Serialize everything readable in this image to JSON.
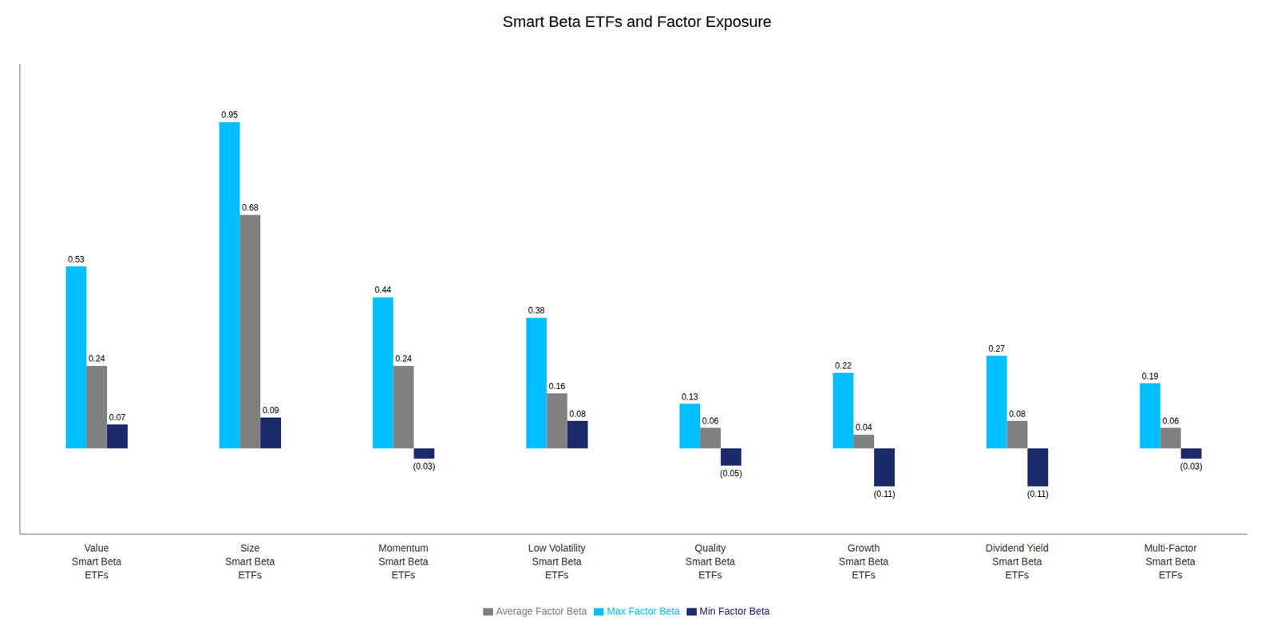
{
  "chart_data": {
    "type": "bar",
    "title": "Smart Beta ETFs and Factor Exposure",
    "categories": [
      "Value\nSmart Beta\nETFs",
      "Size\nSmart Beta\nETFs",
      "Momentum\nSmart Beta\nETFs",
      "Low Volatility\nSmart Beta\nETFs",
      "Quality\nSmart Beta\nETFs",
      "Growth\nSmart Beta\nETFs",
      "Dividend Yield\nSmart Beta\nETFs",
      "Multi-Factor\nSmart Beta\nETFs"
    ],
    "series": [
      {
        "name": "Max Factor Beta",
        "color": "#00BFFF",
        "values": [
          0.53,
          0.95,
          0.44,
          0.38,
          0.13,
          0.22,
          0.27,
          0.19
        ]
      },
      {
        "name": "Average Factor Beta",
        "color": "#808080",
        "values": [
          0.24,
          0.68,
          0.24,
          0.16,
          0.06,
          0.04,
          0.08,
          0.06
        ]
      },
      {
        "name": "Min Factor Beta",
        "color": "#1B2A6B",
        "values": [
          0.07,
          0.09,
          -0.03,
          0.08,
          -0.05,
          -0.11,
          -0.11,
          -0.03
        ],
        "value_labels": [
          "0.07",
          "0.09",
          "(0.03)",
          "0.08",
          "(0.05)",
          "(0.11)",
          "(0.11)",
          "(0.03)"
        ]
      }
    ],
    "ylim": [
      -0.25,
      1.12
    ],
    "data_labels": true,
    "tick_labels": "x",
    "legend": "bottom",
    "grid": false
  }
}
